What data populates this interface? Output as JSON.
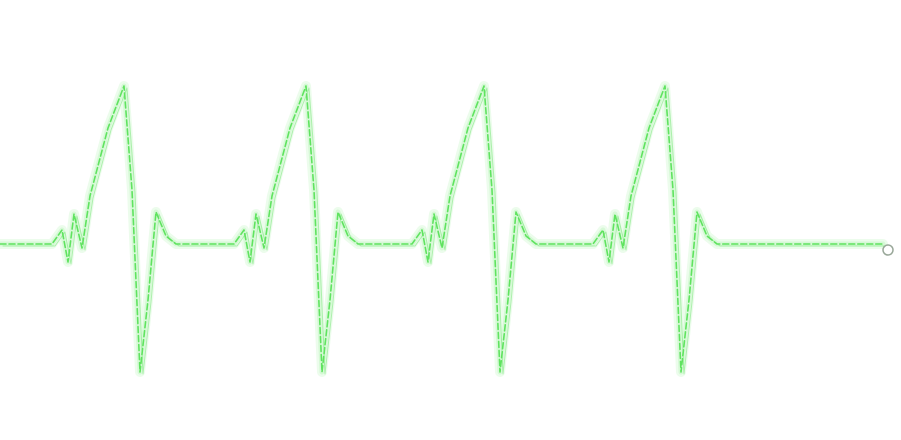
{
  "image": {
    "subject": "heartbeat-waveform",
    "background_color": "#ffffff",
    "line_color": "#5fe35f",
    "glow_color": "#c8f7c8",
    "beat_count": 4,
    "end_marker": "open-circle"
  }
}
